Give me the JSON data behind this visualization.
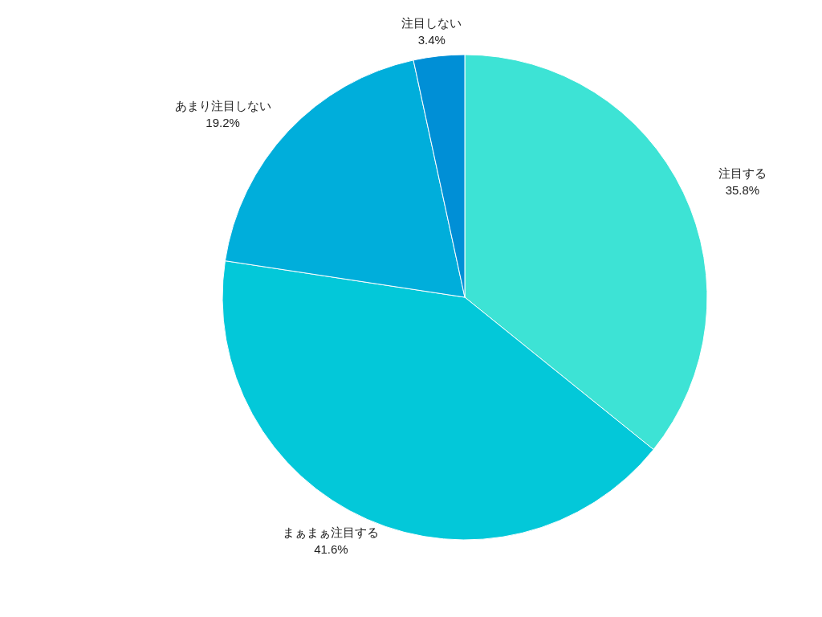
{
  "chart_data": {
    "type": "pie",
    "categories": [
      "注目する",
      "まぁまぁ注目する",
      "あまり注目しない",
      "注目しない"
    ],
    "values": [
      35.8,
      41.6,
      19.2,
      3.4
    ],
    "value_labels": [
      "35.8%",
      "41.6%",
      "19.2%",
      "3.4%"
    ],
    "colors": [
      "#3de3d5",
      "#03c8d9",
      "#00aedb",
      "#008fd6"
    ]
  }
}
